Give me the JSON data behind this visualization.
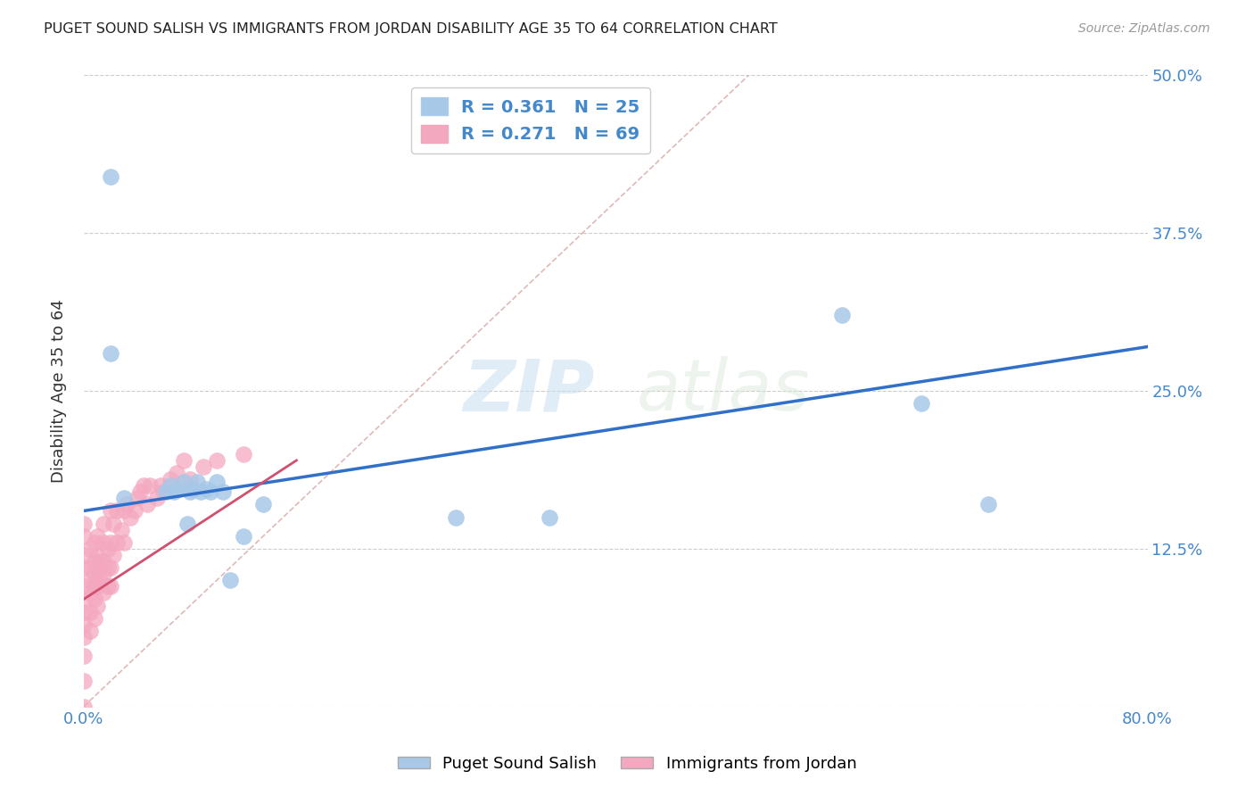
{
  "title": "PUGET SOUND SALISH VS IMMIGRANTS FROM JORDAN DISABILITY AGE 35 TO 64 CORRELATION CHART",
  "source": "Source: ZipAtlas.com",
  "ylabel": "Disability Age 35 to 64",
  "xlim": [
    0.0,
    0.8
  ],
  "ylim": [
    0.0,
    0.5
  ],
  "blue_R": 0.361,
  "blue_N": 25,
  "pink_R": 0.271,
  "pink_N": 69,
  "blue_color": "#a8c8e8",
  "pink_color": "#f4a8c0",
  "blue_line_color": "#3070c8",
  "pink_line_color": "#d05070",
  "diagonal_color": "#e0b8b8",
  "watermark_zip": "ZIP",
  "watermark_atlas": "atlas",
  "blue_scatter_x": [
    0.02,
    0.02,
    0.03,
    0.062,
    0.065,
    0.068,
    0.072,
    0.075,
    0.078,
    0.08,
    0.082,
    0.085,
    0.088,
    0.092,
    0.095,
    0.1,
    0.105,
    0.11,
    0.12,
    0.135,
    0.28,
    0.35,
    0.57,
    0.63,
    0.68
  ],
  "blue_scatter_y": [
    0.42,
    0.28,
    0.165,
    0.17,
    0.175,
    0.17,
    0.172,
    0.178,
    0.145,
    0.17,
    0.172,
    0.178,
    0.17,
    0.172,
    0.17,
    0.178,
    0.17,
    0.1,
    0.135,
    0.16,
    0.15,
    0.15,
    0.31,
    0.24,
    0.16
  ],
  "pink_scatter_x": [
    0.0,
    0.0,
    0.0,
    0.0,
    0.0,
    0.0,
    0.0,
    0.0,
    0.0,
    0.0,
    0.0,
    0.0,
    0.005,
    0.005,
    0.005,
    0.005,
    0.005,
    0.005,
    0.008,
    0.008,
    0.008,
    0.008,
    0.008,
    0.008,
    0.01,
    0.01,
    0.01,
    0.01,
    0.01,
    0.01,
    0.012,
    0.012,
    0.015,
    0.015,
    0.015,
    0.015,
    0.015,
    0.018,
    0.018,
    0.018,
    0.02,
    0.02,
    0.02,
    0.02,
    0.022,
    0.022,
    0.025,
    0.025,
    0.028,
    0.03,
    0.03,
    0.032,
    0.035,
    0.038,
    0.04,
    0.042,
    0.045,
    0.048,
    0.05,
    0.055,
    0.058,
    0.06,
    0.065,
    0.07,
    0.075,
    0.08,
    0.09,
    0.1,
    0.12
  ],
  "pink_scatter_y": [
    0.0,
    0.02,
    0.04,
    0.055,
    0.065,
    0.075,
    0.085,
    0.095,
    0.11,
    0.12,
    0.135,
    0.145,
    0.06,
    0.075,
    0.09,
    0.1,
    0.11,
    0.125,
    0.07,
    0.085,
    0.095,
    0.105,
    0.115,
    0.13,
    0.08,
    0.095,
    0.1,
    0.11,
    0.12,
    0.135,
    0.1,
    0.115,
    0.09,
    0.105,
    0.115,
    0.13,
    0.145,
    0.095,
    0.11,
    0.125,
    0.095,
    0.11,
    0.13,
    0.155,
    0.12,
    0.145,
    0.13,
    0.155,
    0.14,
    0.13,
    0.155,
    0.16,
    0.15,
    0.155,
    0.165,
    0.17,
    0.175,
    0.16,
    0.175,
    0.165,
    0.175,
    0.17,
    0.18,
    0.185,
    0.195,
    0.18,
    0.19,
    0.195,
    0.2
  ],
  "blue_trend_x": [
    0.0,
    0.8
  ],
  "blue_trend_y": [
    0.155,
    0.285
  ],
  "pink_trend_x": [
    0.0,
    0.16
  ],
  "pink_trend_y": [
    0.085,
    0.195
  ]
}
